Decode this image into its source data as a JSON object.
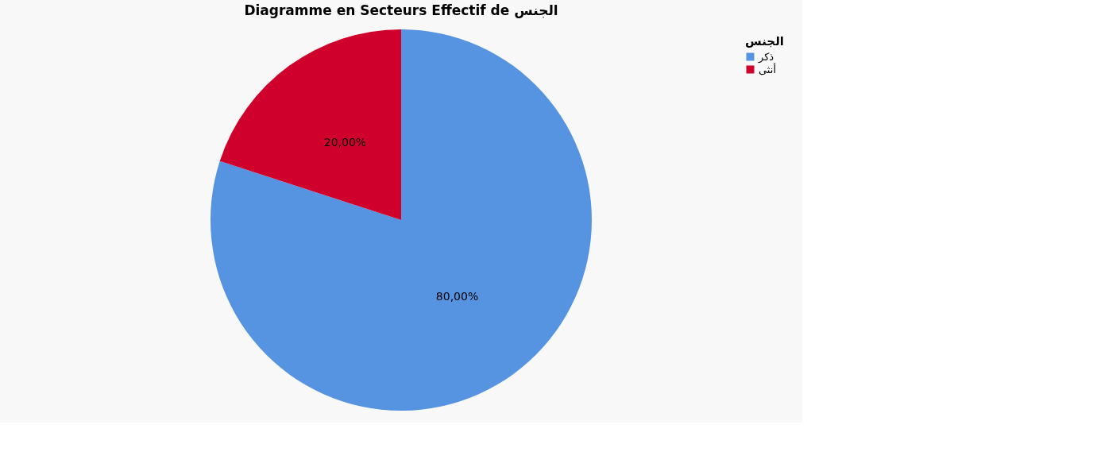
{
  "chart_data": {
    "type": "pie",
    "title": "Diagramme en Secteurs Effectif de الجنس",
    "legend_title": "الجنس",
    "categories": [
      "ذكر",
      "أنثى"
    ],
    "values": [
      80,
      20
    ],
    "colors": [
      "#5694e2",
      "#d0002c"
    ],
    "value_labels": [
      "80,00%",
      "20,00%"
    ],
    "legend": "top right"
  }
}
